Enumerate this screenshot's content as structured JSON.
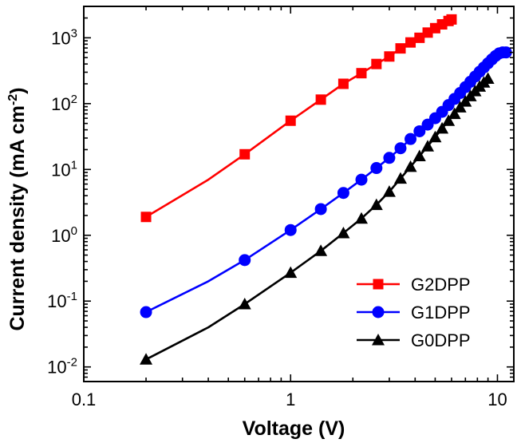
{
  "chart_data": {
    "type": "line",
    "xlabel": "Voltage (V)",
    "ylabel": "Current density (mA cm",
    "ylabel_sup": "-2",
    "ylabel_end": ")",
    "x_scale": "log",
    "y_scale": "log",
    "xlim": [
      0.1,
      12
    ],
    "ylim": [
      0.006,
      3000
    ],
    "x_ticks": [
      {
        "value": 0.1,
        "label": "0.1"
      },
      {
        "value": 1,
        "label": "1"
      },
      {
        "value": 10,
        "label": "10"
      }
    ],
    "y_ticks": [
      {
        "value": 0.01,
        "base": "10",
        "exp": "-2"
      },
      {
        "value": 0.1,
        "base": "10",
        "exp": "-1"
      },
      {
        "value": 1,
        "base": "10",
        "exp": "0"
      },
      {
        "value": 10,
        "base": "10",
        "exp": "1"
      },
      {
        "value": 100,
        "base": "10",
        "exp": "2"
      },
      {
        "value": 1000,
        "base": "10",
        "exp": "3"
      }
    ],
    "grid": false,
    "legend_position": "bottom-right",
    "series": [
      {
        "name": "G2DPP",
        "color": "#ff0000",
        "marker": "square",
        "x": [
          0.2,
          0.4,
          0.6,
          1.0,
          1.4,
          1.8,
          2.2,
          2.6,
          3.0,
          3.4,
          3.8,
          4.2,
          4.6,
          5.0,
          5.4,
          5.8,
          6.0
        ],
        "y": [
          1.9,
          7.0,
          17,
          55,
          115,
          200,
          290,
          400,
          520,
          690,
          850,
          1000,
          1200,
          1400,
          1600,
          1800,
          1900
        ],
        "marker_x": [
          0.2,
          0.6,
          1.0,
          1.4,
          1.8,
          2.2,
          2.6,
          3.0,
          3.4,
          3.8,
          4.2,
          4.6,
          5.0,
          5.4,
          5.8,
          6.0
        ],
        "marker_y": [
          1.9,
          17,
          55,
          115,
          200,
          290,
          400,
          520,
          690,
          850,
          1000,
          1200,
          1400,
          1600,
          1800,
          1900
        ]
      },
      {
        "name": "G1DPP",
        "color": "#0000ff",
        "marker": "circle",
        "x": [
          0.2,
          0.4,
          0.6,
          1.0,
          1.4,
          1.8,
          2.2,
          2.6,
          3.0,
          3.4,
          3.8,
          4.2,
          4.6,
          5.0,
          5.4,
          5.8,
          6.2,
          6.6,
          7.0,
          7.4,
          7.8,
          8.2,
          8.6,
          9.0,
          9.4,
          9.8,
          10.2,
          10.6,
          11.0
        ],
        "y": [
          0.068,
          0.2,
          0.42,
          1.2,
          2.5,
          4.4,
          7.0,
          10.5,
          15,
          21,
          29,
          38,
          48,
          60,
          75,
          95,
          118,
          145,
          178,
          215,
          258,
          305,
          355,
          410,
          470,
          530,
          580,
          600,
          600
        ],
        "marker_x": [
          0.2,
          0.6,
          1.0,
          1.4,
          1.8,
          2.2,
          2.6,
          3.0,
          3.4,
          3.8,
          4.2,
          4.6,
          5.0,
          5.4,
          5.8,
          6.2,
          6.6,
          7.0,
          7.4,
          7.8,
          8.2,
          8.6,
          9.0,
          9.4,
          9.8,
          10.2,
          10.6,
          11.0
        ],
        "marker_y": [
          0.068,
          0.42,
          1.2,
          2.5,
          4.4,
          7.0,
          10.5,
          15,
          21,
          29,
          38,
          48,
          60,
          75,
          95,
          118,
          145,
          178,
          215,
          258,
          305,
          355,
          410,
          470,
          530,
          580,
          600,
          600
        ]
      },
      {
        "name": "G0DPP",
        "color": "#000000",
        "marker": "triangle",
        "x": [
          0.2,
          0.4,
          0.6,
          1.0,
          1.4,
          1.8,
          2.2,
          2.6,
          3.0,
          3.4,
          3.8,
          4.2,
          4.6,
          5.0,
          5.4,
          5.8,
          6.2,
          6.6,
          7.0,
          7.4,
          7.8,
          8.2,
          8.6,
          9.0
        ],
        "y": [
          0.013,
          0.04,
          0.09,
          0.27,
          0.58,
          1.08,
          1.8,
          2.9,
          4.6,
          7.3,
          11,
          16,
          22.5,
          31,
          42,
          55,
          70,
          88,
          108,
          130,
          155,
          182,
          210,
          240
        ],
        "marker_x": [
          0.2,
          0.6,
          1.0,
          1.4,
          1.8,
          2.2,
          2.6,
          3.0,
          3.4,
          3.8,
          4.2,
          4.6,
          5.0,
          5.4,
          5.8,
          6.2,
          6.6,
          7.0,
          7.4,
          7.8,
          8.2,
          8.6,
          9.0
        ],
        "marker_y": [
          0.013,
          0.09,
          0.27,
          0.58,
          1.08,
          1.8,
          2.9,
          4.6,
          7.3,
          11,
          16,
          22.5,
          31,
          42,
          55,
          70,
          88,
          108,
          130,
          155,
          182,
          210,
          240
        ]
      }
    ]
  }
}
